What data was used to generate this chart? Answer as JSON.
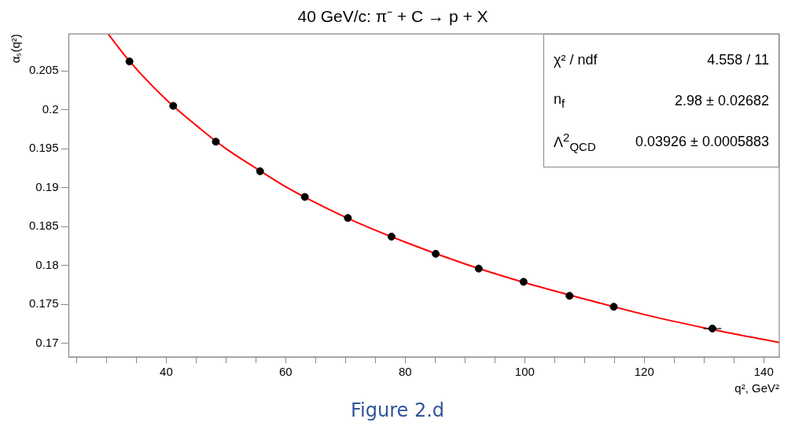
{
  "chart_data": {
    "type": "scatter",
    "title": "40 GeV/c: π⁻ + C → p + X",
    "xlabel": "q², GeV²",
    "ylabel": "αₛ(q²)",
    "annotations": [
      "χ² / ndf",
      "4.558 / 11",
      "n$_{f}$",
      "2.98 ± 0.02682",
      "Λ$^{2}$$_{QCD}$",
      "0.03926 ± 0.0005883",
      "Figure 2.d"
    ],
    "series": [
      {
        "type": "scatter",
        "color": "#000000",
        "marker": "circle",
        "x": [
          33.85,
          41.17,
          48.3,
          55.7,
          63.2,
          70.4,
          77.7,
          85.1,
          92.3,
          99.8,
          107.5,
          114.9,
          131.4
        ],
        "values": [
          0.2062,
          0.2005,
          0.1959,
          0.1921,
          0.1888,
          0.1861,
          0.1837,
          0.1815,
          0.1796,
          0.1779,
          0.1761,
          0.1747,
          0.1719
        ],
        "xerrors": [
          null,
          null,
          null,
          null,
          null,
          null,
          null,
          null,
          null,
          null,
          null,
          null,
          1.5
        ]
      },
      {
        "type": "line",
        "color": "#ff0000",
        "marker": "none",
        "x": [
          30.3,
          34,
          40,
          45,
          50,
          55,
          60,
          70,
          80,
          90,
          100,
          110,
          120,
          130,
          142.6
        ],
        "values": [
          0.2097,
          0.2061,
          0.2013,
          0.198,
          0.195,
          0.1925,
          0.1901,
          0.1862,
          0.183,
          0.1802,
          0.1778,
          0.1757,
          0.1737,
          0.172,
          0.1701
        ]
      }
    ],
    "xlim": [
      23.7,
      142.6
    ],
    "xticks": [
      {
        "value": 25,
        "label": null
      },
      {
        "value": 30,
        "label": null
      },
      {
        "value": 35,
        "label": null
      },
      40,
      {
        "value": 45,
        "label": null
      },
      {
        "value": 50,
        "label": null
      },
      {
        "value": 55,
        "label": null
      },
      60,
      {
        "value": 65,
        "label": null
      },
      {
        "value": 70,
        "label": null
      },
      {
        "value": 75,
        "label": null
      },
      80,
      {
        "value": 85,
        "label": null
      },
      {
        "value": 90,
        "label": null
      },
      {
        "value": 95,
        "label": null
      },
      100,
      {
        "value": 105,
        "label": null
      },
      {
        "value": 110,
        "label": null
      },
      {
        "value": 115,
        "label": null
      },
      120,
      {
        "value": 125,
        "label": null
      },
      {
        "value": 130,
        "label": null
      },
      {
        "value": 135,
        "label": null
      },
      140
    ],
    "ylim": [
      0.16826,
      0.20973
    ],
    "yticks": [
      0.17,
      0.175,
      0.18,
      0.185,
      0.19,
      0.195,
      0.2,
      0.205
    ],
    "grid": false,
    "legend": false
  }
}
